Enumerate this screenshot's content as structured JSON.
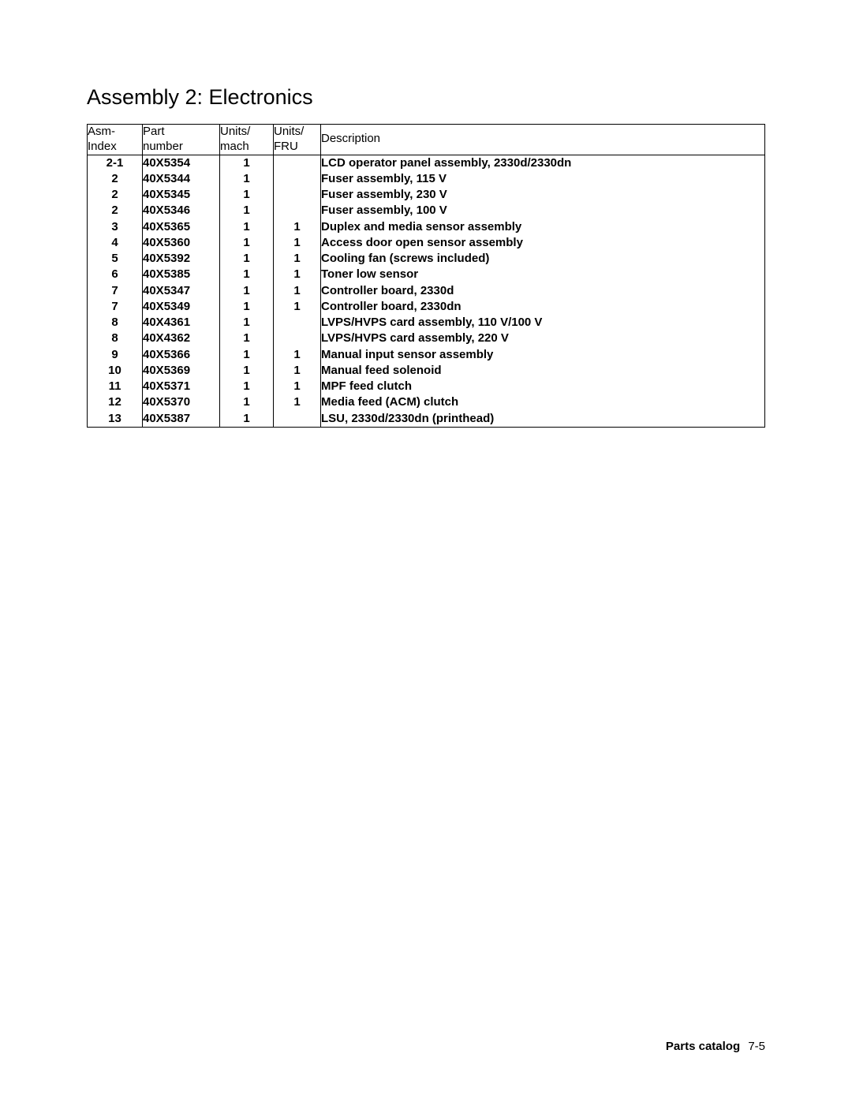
{
  "title": "Assembly 2: Electronics",
  "columns": [
    {
      "line1": "Asm-",
      "line2": "Index"
    },
    {
      "line1": "Part",
      "line2": "number"
    },
    {
      "line1": "Units/",
      "line2": "mach"
    },
    {
      "line1": "Units/",
      "line2": "FRU"
    },
    {
      "line1": "Description",
      "line2": ""
    }
  ],
  "rows": [
    {
      "asm": "2-1",
      "part": "40X5354",
      "mach": "1",
      "fru": "",
      "desc": "LCD operator panel assembly, 2330d/2330dn"
    },
    {
      "asm": "2",
      "part": "40X5344",
      "mach": "1",
      "fru": "",
      "desc": "Fuser assembly, 115 V"
    },
    {
      "asm": "2",
      "part": "40X5345",
      "mach": "1",
      "fru": "",
      "desc": "Fuser assembly, 230 V"
    },
    {
      "asm": "2",
      "part": "40X5346",
      "mach": "1",
      "fru": "",
      "desc": "Fuser assembly, 100 V"
    },
    {
      "asm": "3",
      "part": "40X5365",
      "mach": "1",
      "fru": "1",
      "desc": "Duplex and media sensor assembly"
    },
    {
      "asm": "4",
      "part": "40X5360",
      "mach": "1",
      "fru": "1",
      "desc": "Access door open sensor assembly"
    },
    {
      "asm": "5",
      "part": "40X5392",
      "mach": "1",
      "fru": "1",
      "desc": "Cooling fan (screws included)"
    },
    {
      "asm": "6",
      "part": "40X5385",
      "mach": "1",
      "fru": "1",
      "desc": "Toner low sensor"
    },
    {
      "asm": "7",
      "part": "40X5347",
      "mach": "1",
      "fru": "1",
      "desc": "Controller board, 2330d"
    },
    {
      "asm": "7",
      "part": "40X5349",
      "mach": "1",
      "fru": "1",
      "desc": "Controller board, 2330dn"
    },
    {
      "asm": "8",
      "part": "40X4361",
      "mach": "1",
      "fru": "",
      "desc": "LVPS/HVPS card assembly, 110 V/100 V"
    },
    {
      "asm": "8",
      "part": "40X4362",
      "mach": "1",
      "fru": "",
      "desc": "LVPS/HVPS card assembly, 220 V"
    },
    {
      "asm": "9",
      "part": "40X5366",
      "mach": "1",
      "fru": "1",
      "desc": "Manual input sensor assembly"
    },
    {
      "asm": "10",
      "part": "40X5369",
      "mach": "1",
      "fru": "1",
      "desc": "Manual feed solenoid"
    },
    {
      "asm": "11",
      "part": "40X5371",
      "mach": "1",
      "fru": "1",
      "desc": "MPF feed clutch"
    },
    {
      "asm": "12",
      "part": "40X5370",
      "mach": "1",
      "fru": "1",
      "desc": "Media feed (ACM) clutch"
    },
    {
      "asm": "13",
      "part": "40X5387",
      "mach": "1",
      "fru": "",
      "desc": "LSU, 2330d/2330dn (printhead)"
    }
  ],
  "footer": {
    "label": "Parts catalog",
    "page": "7-5"
  }
}
